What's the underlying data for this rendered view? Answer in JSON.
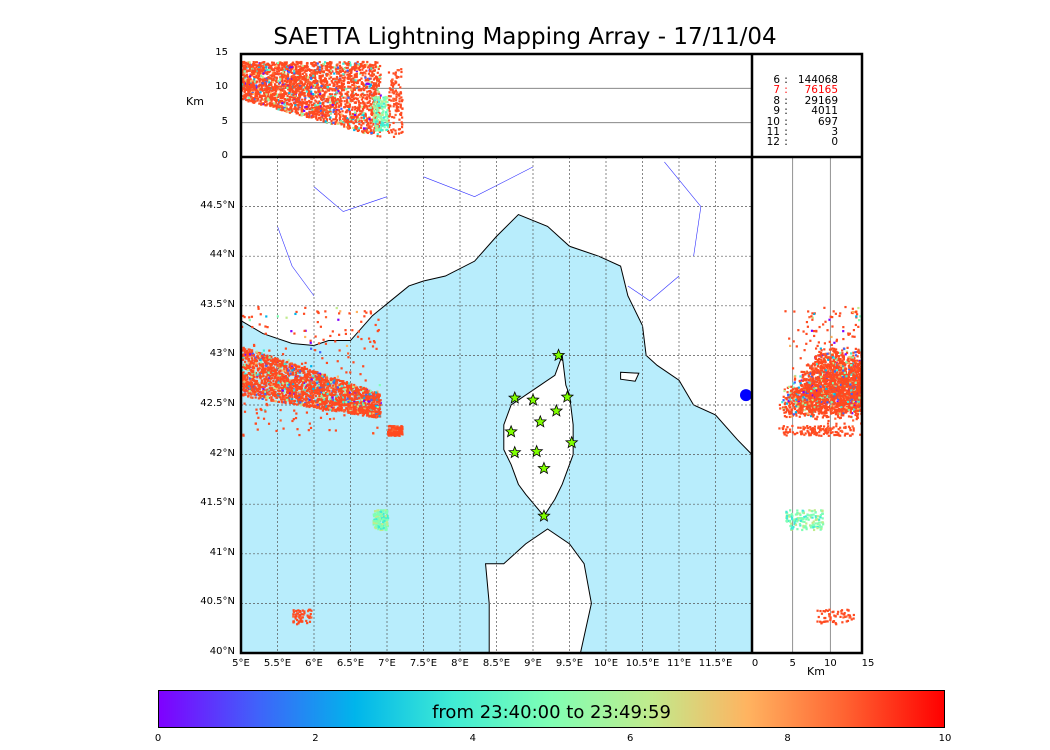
{
  "title": "SAETTA Lightning Mapping Array - 17/11/04",
  "stats": [
    {
      "n": "6",
      "count": "144068",
      "color": "#000000"
    },
    {
      "n": "7",
      "count": "76165",
      "color": "#ff0000"
    },
    {
      "n": "8",
      "count": "29169",
      "color": "#000000"
    },
    {
      "n": "9",
      "count": "4011",
      "color": "#000000"
    },
    {
      "n": "10",
      "count": "697",
      "color": "#000000"
    },
    {
      "n": "11",
      "count": "3",
      "color": "#000000"
    },
    {
      "n": "12",
      "count": "0",
      "color": "#000000"
    }
  ],
  "top_panel": {
    "ylabel": "Km",
    "yticks": [
      "0",
      "5",
      "10",
      "15"
    ]
  },
  "right_panel": {
    "xlabel": "Km",
    "xticks": [
      "0",
      "5",
      "10",
      "15"
    ]
  },
  "map": {
    "lon_ticks": [
      "5°E",
      "5.5°E",
      "6°E",
      "6.5°E",
      "7°E",
      "7.5°E",
      "8°E",
      "8.5°E",
      "9°E",
      "9.5°E",
      "10°E",
      "10.5°E",
      "11°E",
      "11.5°E"
    ],
    "lat_ticks": [
      "40°N",
      "40.5°N",
      "41°N",
      "41.5°N",
      "42°N",
      "42.5°N",
      "43°N",
      "43.5°N",
      "44°N",
      "44.5°N"
    ],
    "sea_color": "#b8edfc"
  },
  "colorbar": {
    "label": "from 23:40:00 to 23:49:59",
    "ticks": [
      "0",
      "2",
      "4",
      "6",
      "8",
      "10"
    ]
  },
  "chart_data": {
    "type": "scatter",
    "title": "SAETTA Lightning Mapping Array - 17/11/04",
    "xlim_lon": [
      5,
      12
    ],
    "ylim_lat": [
      40,
      45
    ],
    "alt_km": [
      0,
      15
    ],
    "time_scale": [
      0,
      10
    ],
    "clusters": [
      {
        "lon": [
          5.0,
          6.9
        ],
        "lat": [
          42.2,
          43.5
        ],
        "alt_km": [
          3,
          14
        ],
        "time": [
          0,
          10
        ]
      },
      {
        "lon": [
          7.0,
          7.2
        ],
        "lat": [
          42.2,
          42.3
        ],
        "alt_km": [
          3,
          13
        ],
        "time": [
          8,
          10
        ]
      },
      {
        "lon": [
          6.8,
          7.0
        ],
        "lat": [
          41.25,
          41.45
        ],
        "alt_km": [
          4,
          9
        ],
        "time": [
          4,
          6
        ]
      },
      {
        "lon": [
          5.7,
          5.95
        ],
        "lat": [
          40.3,
          40.45
        ],
        "alt_km": [
          8,
          13
        ],
        "time": [
          8,
          10
        ]
      }
    ],
    "stations": [
      [
        9.35,
        43.0
      ],
      [
        8.75,
        42.57
      ],
      [
        9.0,
        42.55
      ],
      [
        9.47,
        42.58
      ],
      [
        9.1,
        42.33
      ],
      [
        9.32,
        42.44
      ],
      [
        8.7,
        42.23
      ],
      [
        9.53,
        42.12
      ],
      [
        8.75,
        42.02
      ],
      [
        9.05,
        42.03
      ],
      [
        9.15,
        41.86
      ],
      [
        9.15,
        41.38
      ]
    ]
  }
}
